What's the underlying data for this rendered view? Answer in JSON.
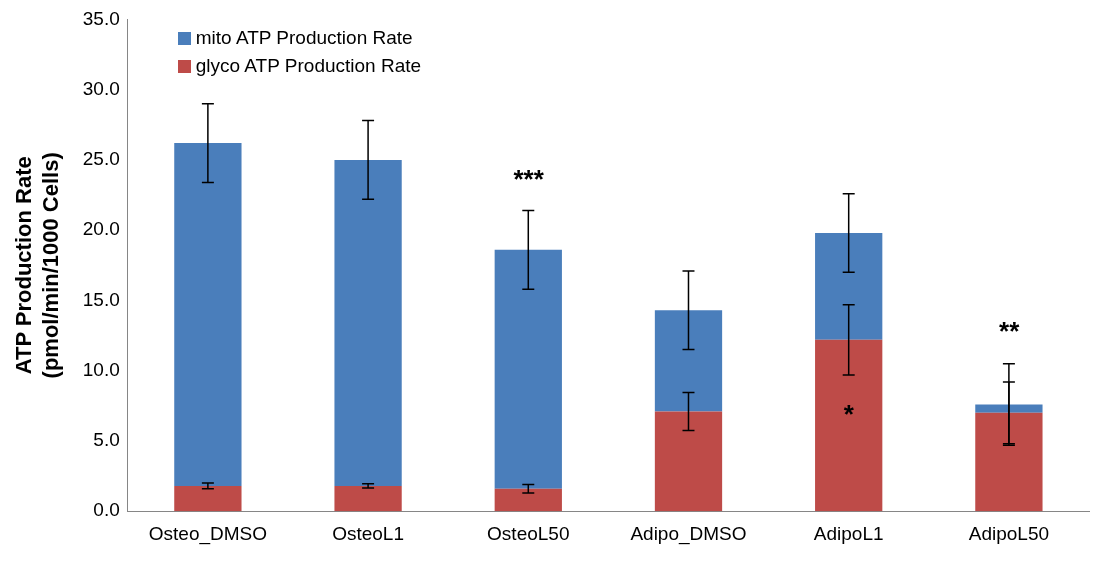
{
  "chart_data": {
    "type": "bar",
    "stacked": true,
    "ylabel": "ATP Production Rate\n(pmol/min/1000 Cells)",
    "categories": [
      "Osteo_DMSO",
      "OsteoL1",
      "OsteoL50",
      "Adipo_DMSO",
      "AdipoL1",
      "AdipoL50"
    ],
    "series": [
      {
        "name": "glyco ATP Production Rate",
        "color": "#be4b48",
        "values": [
          1.8,
          1.8,
          1.6,
          7.1,
          12.2,
          7.0
        ],
        "errors": [
          0.2,
          0.15,
          0.3,
          1.35,
          2.5,
          2.2
        ]
      },
      {
        "name": "mito ATP Production Rate",
        "color": "#4a7ebb",
        "values": [
          24.4,
          23.2,
          17.0,
          7.2,
          7.6,
          0.6
        ],
        "errors": [
          2.8,
          2.8,
          2.8,
          2.8,
          2.8,
          2.9
        ]
      }
    ],
    "ylim": [
      0,
      35
    ],
    "yticks": [
      {
        "value": 0,
        "label": "0.0"
      },
      {
        "value": 5,
        "label": "5.0"
      },
      {
        "value": 10,
        "label": "10.0"
      },
      {
        "value": 15,
        "label": "15.0"
      },
      {
        "value": 20,
        "label": "20.0"
      },
      {
        "value": 25,
        "label": "25.0"
      },
      {
        "value": 30,
        "label": "30.0"
      },
      {
        "value": 35,
        "label": "35.0"
      }
    ],
    "annotations": [
      "***",
      "*",
      "**"
    ],
    "grid": false,
    "legend": "top left"
  }
}
